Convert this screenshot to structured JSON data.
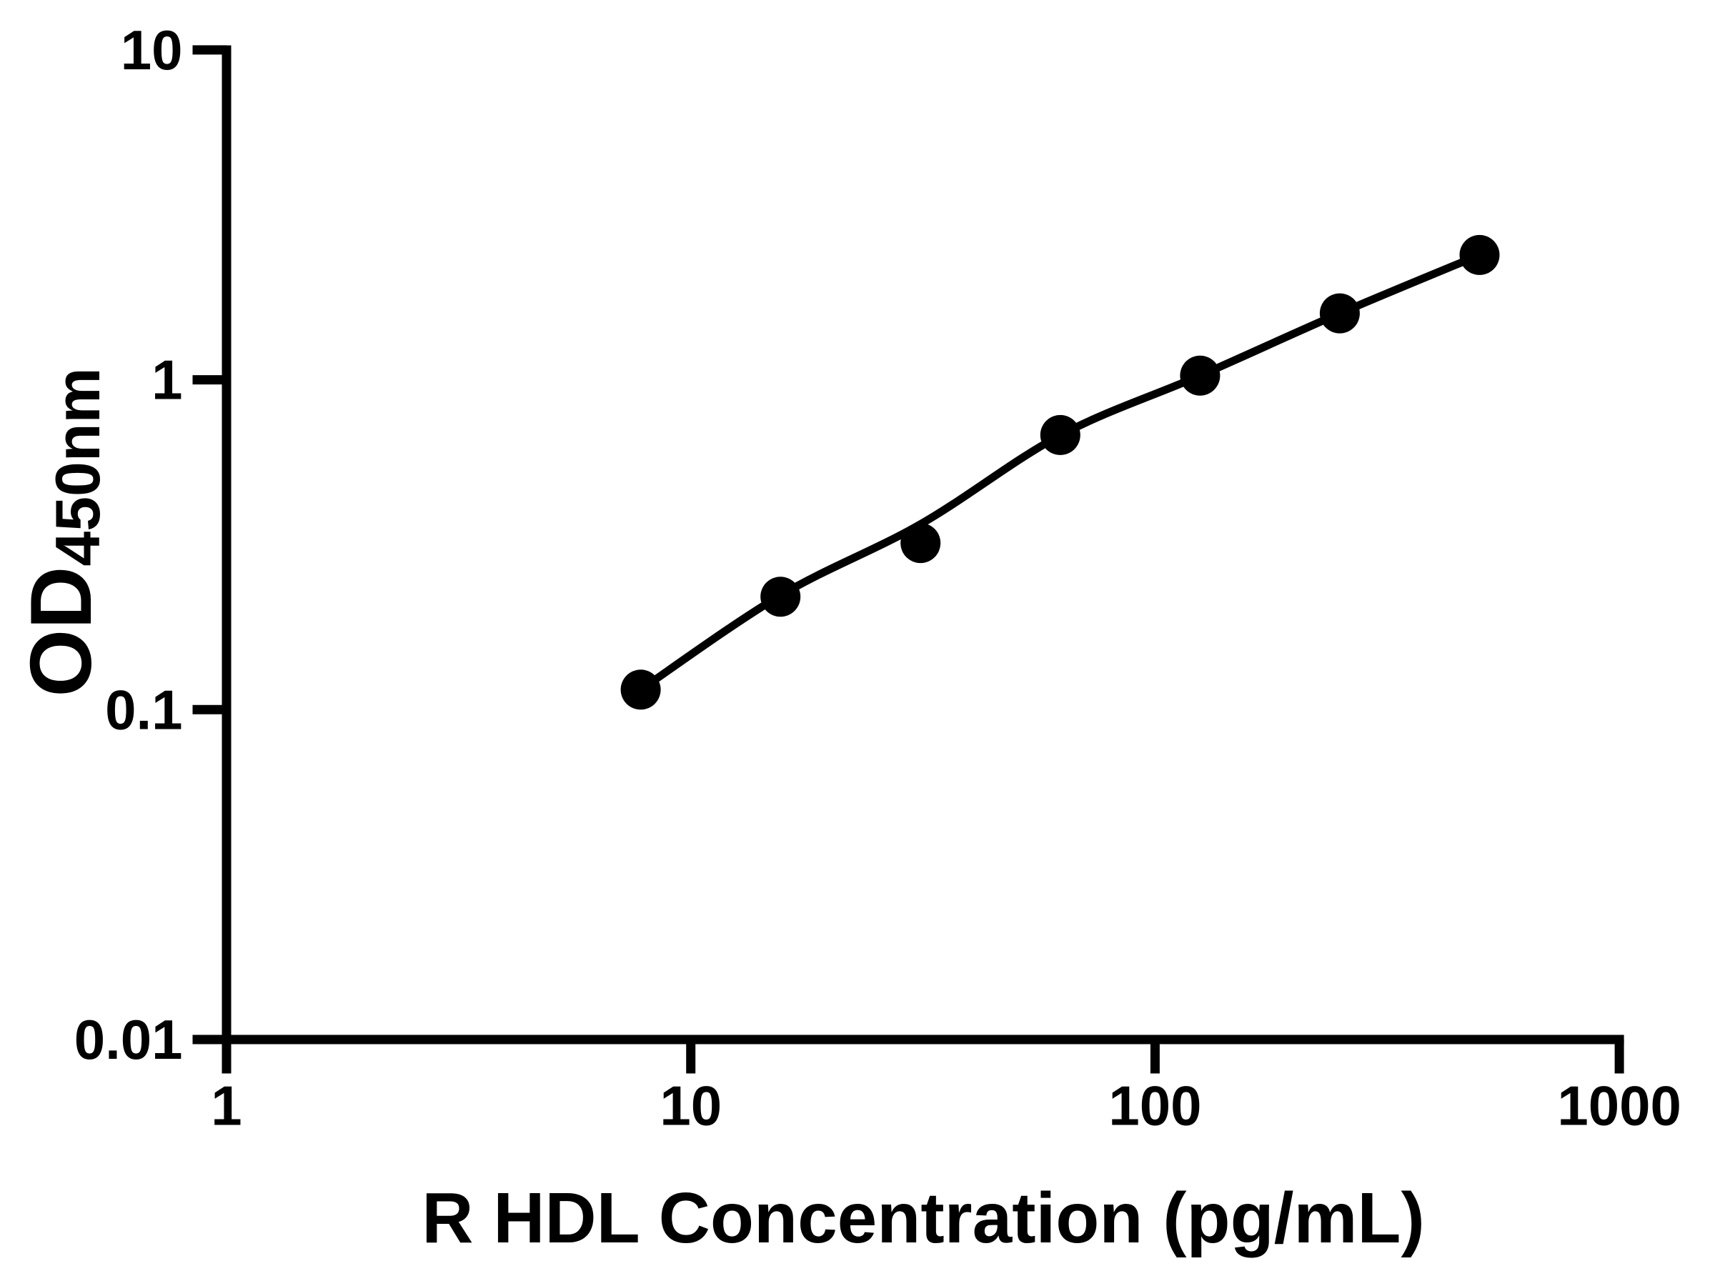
{
  "figure": {
    "background": "#ffffff",
    "x_axis_title": "R HDL Concentration (pg/mL)",
    "y_axis_title_main": "OD",
    "y_axis_title_sub": "450nm"
  },
  "chart_data": {
    "type": "scatter",
    "title": "",
    "xlabel": "R HDL Concentration (pg/mL)",
    "ylabel": "OD450nm",
    "x_scale": "log",
    "y_scale": "log",
    "xlim": [
      1,
      1000
    ],
    "ylim": [
      0.01,
      10
    ],
    "grid": false,
    "legend": false,
    "x_tick_values": [
      1,
      10,
      100,
      1000
    ],
    "x_tick_labels": [
      "1",
      "10",
      "100",
      "1000"
    ],
    "y_tick_values": [
      10,
      1,
      0.1,
      0.01
    ],
    "y_tick_labels": [
      "10",
      "1",
      "0.1",
      "0.01"
    ],
    "series": [
      {
        "name": "standard-curve-points",
        "marker": "circle",
        "color": "#000000",
        "x": [
          7.8,
          15.6,
          31.25,
          62.5,
          125,
          250,
          500
        ],
        "y": [
          0.115,
          0.22,
          0.32,
          0.68,
          1.03,
          1.59,
          2.39
        ]
      }
    ],
    "fit_curve": {
      "name": "fitted-curve",
      "color": "#000000",
      "x": [
        7.8,
        15.6,
        31.25,
        62.5,
        125,
        250,
        500
      ],
      "y": [
        0.115,
        0.222,
        0.365,
        0.679,
        1.03,
        1.59,
        2.39
      ]
    }
  }
}
